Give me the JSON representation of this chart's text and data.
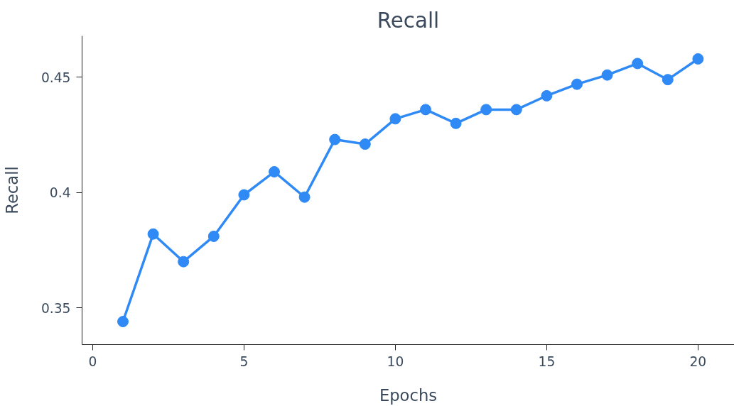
{
  "chart_data": {
    "type": "line",
    "title": "Recall",
    "xlabel": "Epochs",
    "ylabel": "Recall",
    "x": [
      1,
      2,
      3,
      4,
      5,
      6,
      7,
      8,
      9,
      10,
      11,
      12,
      13,
      14,
      15,
      16,
      17,
      18,
      19,
      20
    ],
    "series": [
      {
        "color": "#2f8af5",
        "values": [
          0.344,
          0.382,
          0.37,
          0.381,
          0.399,
          0.409,
          0.398,
          0.423,
          0.421,
          0.432,
          0.436,
          0.43,
          0.436,
          0.436,
          0.442,
          0.447,
          0.451,
          0.456,
          0.449,
          0.458
        ]
      }
    ],
    "xlim": [
      -0.35,
      21.2
    ],
    "ylim": [
      0.334,
      0.468
    ],
    "xticks": [
      0,
      5,
      10,
      15,
      20
    ],
    "yticks": [
      {
        "value": 0.35,
        "label": "0.35"
      },
      {
        "value": 0.4,
        "label": "0.4"
      },
      {
        "value": 0.45,
        "label": "0.45"
      }
    ],
    "grid": false,
    "marker": "circle",
    "line_style": "solid"
  }
}
